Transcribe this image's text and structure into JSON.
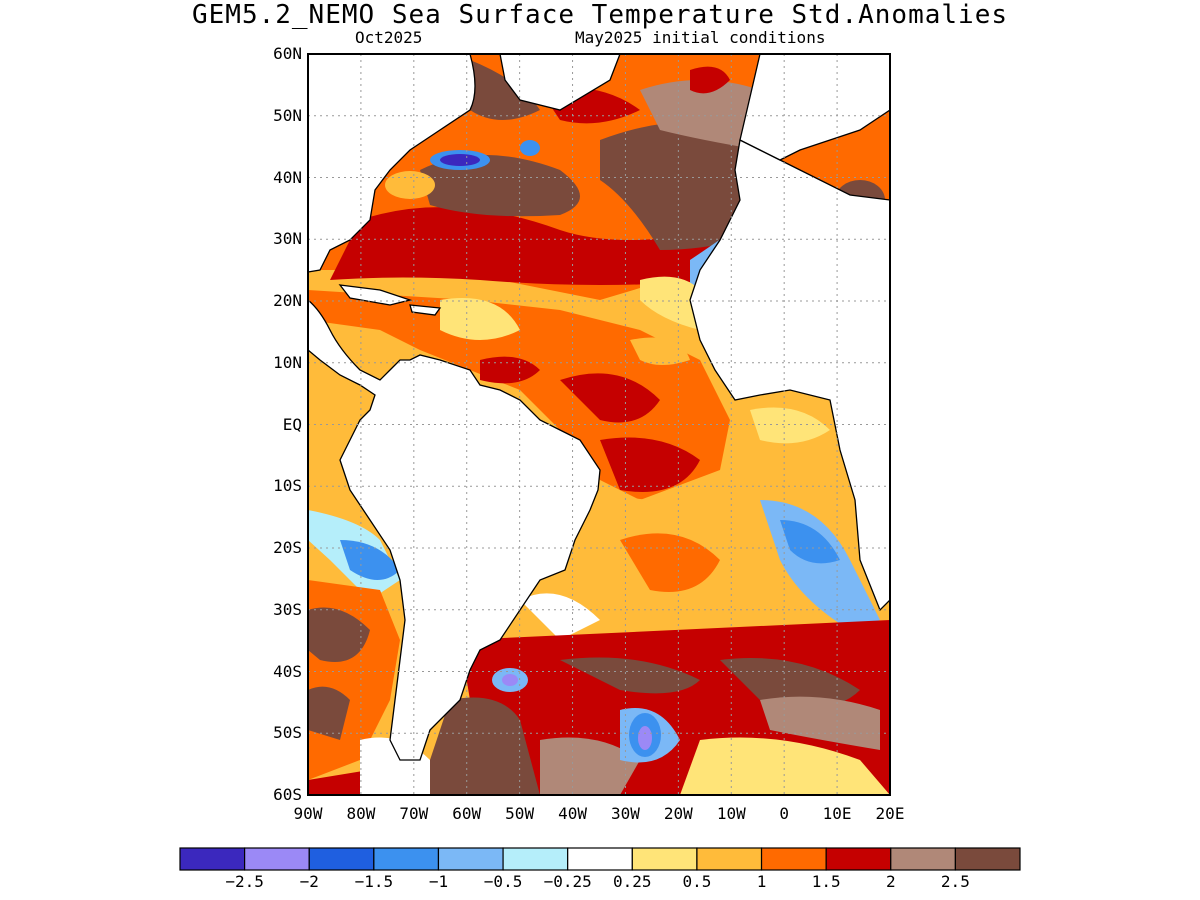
{
  "title": "GEM5.2_NEMO Sea Surface Temperature Std.Anomalies",
  "subtitle_left": "Oct2025",
  "subtitle_right": "May2025 initial conditions",
  "lat_labels": [
    "60N",
    "50N",
    "40N",
    "30N",
    "20N",
    "10N",
    "EQ",
    "10S",
    "20S",
    "30S",
    "40S",
    "50S",
    "60S"
  ],
  "lon_labels": [
    "90W",
    "80W",
    "70W",
    "60W",
    "50W",
    "40W",
    "30W",
    "20W",
    "10W",
    "0",
    "10E",
    "20E"
  ],
  "map_extent": {
    "lon_min": -90,
    "lon_max": 20,
    "lat_min": -60,
    "lat_max": 60
  },
  "colorbar": {
    "colors": [
      "#3b28be",
      "#9b89f6",
      "#1f5fe0",
      "#3c91ef",
      "#7bb8f6",
      "#b5eefa",
      "#ffffff",
      "#ffe478",
      "#ffbb3a",
      "#ff6a00",
      "#c50000",
      "#b08878",
      "#7a4a3c"
    ],
    "labels": [
      "−2.5",
      "−2",
      "−1.5",
      "−1",
      "−0.5",
      "−0.25",
      "0.25",
      "0.5",
      "1",
      "1.5",
      "2",
      "2.5"
    ]
  },
  "land_color": "#ffffff"
}
